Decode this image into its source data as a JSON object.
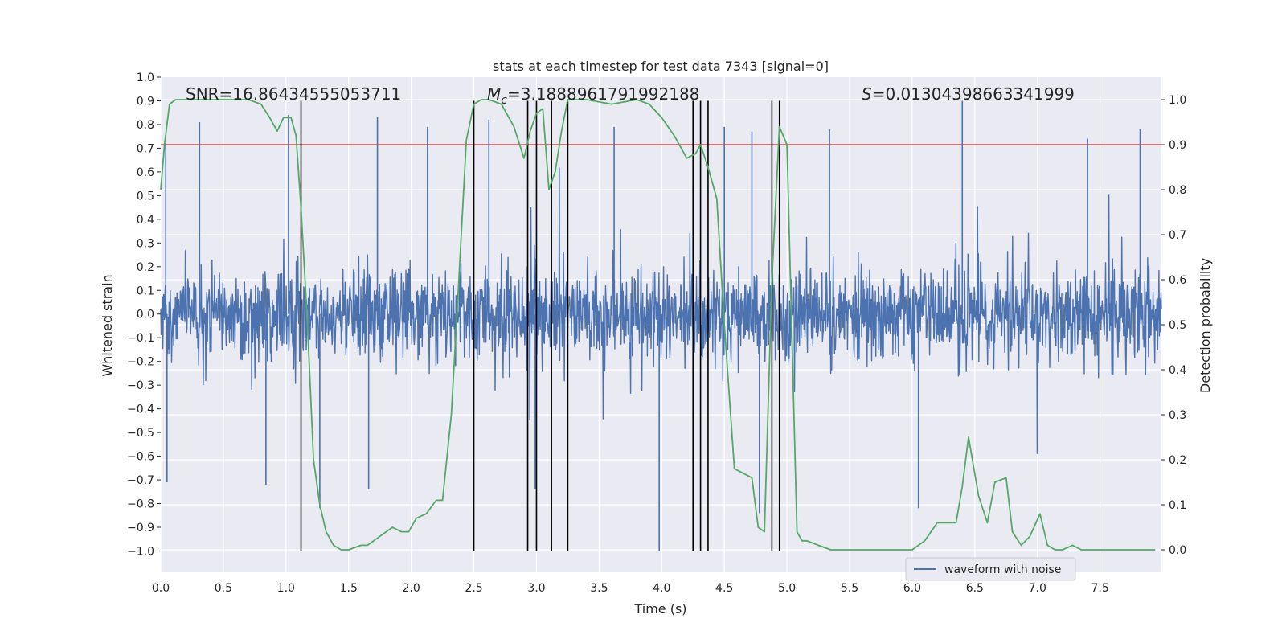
{
  "chart_data": {
    "type": "line",
    "title": "stats at each timestep for test data 7343 [signal=0]",
    "xlabel": "Time (s)",
    "ylabel_left": "Whitened strain",
    "ylabel_right": "Detection probability",
    "xlim": [
      0.0,
      7.99
    ],
    "ylim_left": [
      -1.09,
      1.0
    ],
    "ylim_right": [
      -0.05,
      1.05
    ],
    "xticks": [
      "0.0",
      "0.5",
      "1.0",
      "1.5",
      "2.0",
      "2.5",
      "3.0",
      "3.5",
      "4.0",
      "4.5",
      "5.0",
      "5.5",
      "6.0",
      "6.5",
      "7.0",
      "7.5"
    ],
    "yticks_left": [
      "1.0",
      "0.9",
      "0.8",
      "0.7",
      "0.6",
      "0.5",
      "0.4",
      "0.3",
      "0.2",
      "0.1",
      "0.0",
      "−0.1",
      "−0.2",
      "−0.3",
      "−0.4",
      "−0.5",
      "−0.6",
      "−0.7",
      "−0.8",
      "−0.9",
      "−1.0"
    ],
    "yticks_right": [
      "1.0",
      "0.9",
      "0.8",
      "0.7",
      "0.6",
      "0.5",
      "0.4",
      "0.3",
      "0.2",
      "0.1",
      "0.0"
    ],
    "grid": true,
    "background": "#eaeaf2",
    "annotations": {
      "snr": "SNR=16.86434555053711",
      "mc_symbol": "M",
      "mc_sub": "c",
      "mc_value": "=3.1888961791992188",
      "s_symbol": "S",
      "s_value": "=0.01304398663341999"
    },
    "legend": {
      "label": "waveform with noise",
      "placement": "lower-right"
    },
    "threshold_line": {
      "y": 0.9,
      "axis": "right",
      "color": "#c44e52"
    },
    "vertical_markers_x": [
      1.12,
      2.5,
      2.93,
      3.0,
      3.12,
      3.25,
      4.25,
      4.31,
      4.37,
      4.88,
      4.94
    ],
    "vertical_marker_range_left": [
      -1.0,
      0.9
    ],
    "series": [
      {
        "name": "waveform with noise",
        "axis": "left",
        "color": "#4c72b0",
        "description_level": "dense noise, typical amplitude about ±0.3 to ±0.5 with spikes to about 0.9 and −1.0",
        "spikes": [
          {
            "x": 0.04,
            "y": 0.72
          },
          {
            "x": 0.05,
            "y": -0.71
          },
          {
            "x": 0.31,
            "y": 0.81
          },
          {
            "x": 0.84,
            "y": -0.72
          },
          {
            "x": 1.02,
            "y": 0.84
          },
          {
            "x": 1.27,
            "y": -0.82
          },
          {
            "x": 1.73,
            "y": 0.83
          },
          {
            "x": 1.66,
            "y": -0.74
          },
          {
            "x": 2.13,
            "y": 0.79
          },
          {
            "x": 2.62,
            "y": 0.82
          },
          {
            "x": 2.99,
            "y": -0.74
          },
          {
            "x": 3.62,
            "y": 0.79
          },
          {
            "x": 3.98,
            "y": -1.0
          },
          {
            "x": 4.5,
            "y": 0.79
          },
          {
            "x": 4.72,
            "y": 0.77
          },
          {
            "x": 4.78,
            "y": -0.84
          },
          {
            "x": 5.34,
            "y": 0.78
          },
          {
            "x": 6.4,
            "y": 0.9
          },
          {
            "x": 6.05,
            "y": -0.82
          },
          {
            "x": 7.4,
            "y": 0.74
          },
          {
            "x": 7.82,
            "y": 0.78
          }
        ]
      },
      {
        "name": "",
        "axis": "right",
        "color": "#55a868",
        "x": [
          0.0,
          0.03,
          0.07,
          0.12,
          0.2,
          0.3,
          0.5,
          0.7,
          0.8,
          0.87,
          0.93,
          0.98,
          1.04,
          1.08,
          1.12,
          1.17,
          1.22,
          1.27,
          1.32,
          1.38,
          1.44,
          1.5,
          1.6,
          1.65,
          1.7,
          1.8,
          1.85,
          1.92,
          1.98,
          2.04,
          2.12,
          2.2,
          2.25,
          2.32,
          2.38,
          2.44,
          2.5,
          2.56,
          2.62,
          2.72,
          2.82,
          2.9,
          2.95,
          3.0,
          3.05,
          3.1,
          3.15,
          3.2,
          3.25,
          3.3,
          3.4,
          3.6,
          3.8,
          3.9,
          4.0,
          4.1,
          4.2,
          4.27,
          4.31,
          4.37,
          4.44,
          4.5,
          4.58,
          4.65,
          4.72,
          4.77,
          4.82,
          4.88,
          4.94,
          5.0,
          5.08,
          5.12,
          5.16,
          5.25,
          5.35,
          5.45,
          5.6,
          5.8,
          6.0,
          6.1,
          6.2,
          6.28,
          6.35,
          6.4,
          6.45,
          6.53,
          6.6,
          6.66,
          6.75,
          6.8,
          6.87,
          6.94,
          7.02,
          7.08,
          7.14,
          7.2,
          7.28,
          7.35,
          7.5,
          7.7,
          7.94
        ],
        "y": [
          0.8,
          0.9,
          0.99,
          1.0,
          1.0,
          1.0,
          1.0,
          1.0,
          0.99,
          0.96,
          0.93,
          0.96,
          0.96,
          0.92,
          0.76,
          0.51,
          0.2,
          0.1,
          0.04,
          0.01,
          0.0,
          0.0,
          0.01,
          0.01,
          0.02,
          0.04,
          0.05,
          0.04,
          0.04,
          0.07,
          0.08,
          0.11,
          0.11,
          0.3,
          0.6,
          0.91,
          0.99,
          1.0,
          1.0,
          0.99,
          0.94,
          0.87,
          0.93,
          0.97,
          0.98,
          0.8,
          0.84,
          0.93,
          1.0,
          1.0,
          1.0,
          0.99,
          1.0,
          0.99,
          0.96,
          0.92,
          0.87,
          0.88,
          0.9,
          0.85,
          0.78,
          0.5,
          0.18,
          0.17,
          0.16,
          0.05,
          0.04,
          0.6,
          0.94,
          0.9,
          0.04,
          0.02,
          0.02,
          0.01,
          0.0,
          0.0,
          0.0,
          0.0,
          0.0,
          0.02,
          0.06,
          0.06,
          0.06,
          0.14,
          0.25,
          0.12,
          0.06,
          0.15,
          0.16,
          0.04,
          0.01,
          0.03,
          0.08,
          0.01,
          0.0,
          0.0,
          0.01,
          0.0,
          0.0,
          0.0,
          0.0
        ]
      }
    ]
  }
}
